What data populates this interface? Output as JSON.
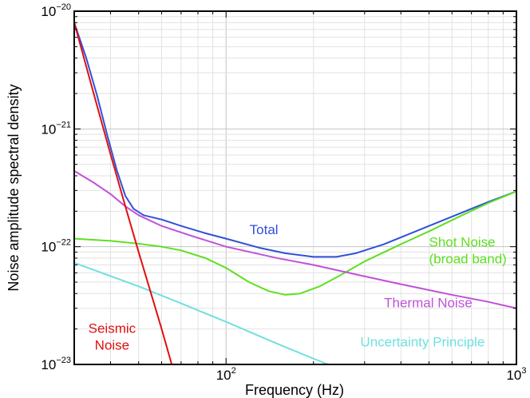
{
  "chart_data": {
    "type": "line",
    "title": "",
    "xlabel": "Frequency (Hz)",
    "ylabel": "Noise amplitude spectral density",
    "xscale": "log",
    "yscale": "log",
    "xlim": [
      30,
      1000
    ],
    "ylim": [
      1e-23,
      1e-20
    ],
    "grid": true,
    "x_ticks": [
      {
        "value": 100,
        "base": "10",
        "exp": "2"
      },
      {
        "value": 1000,
        "base": "10",
        "exp": "3"
      }
    ],
    "y_ticks": [
      {
        "value": 1e-23,
        "base": "10",
        "exp": "−23"
      },
      {
        "value": 1e-22,
        "base": "10",
        "exp": "−22"
      },
      {
        "value": 1e-21,
        "base": "10",
        "exp": "−21"
      },
      {
        "value": 1e-20,
        "base": "10",
        "exp": "−20"
      }
    ],
    "series": [
      {
        "name": "Total",
        "color": "#3050d8",
        "label_lines": [
          "Total"
        ],
        "label_at": [
          135,
          1.28e-22
        ],
        "label_anchor": "middle",
        "points": [
          [
            30,
            8e-21
          ],
          [
            33,
            4e-21
          ],
          [
            36,
            1.9e-21
          ],
          [
            39,
            8.8e-22
          ],
          [
            42,
            4.5e-22
          ],
          [
            45,
            2.7e-22
          ],
          [
            48,
            2.1e-22
          ],
          [
            52,
            1.85e-22
          ],
          [
            60,
            1.7e-22
          ],
          [
            70,
            1.5e-22
          ],
          [
            85,
            1.3e-22
          ],
          [
            100,
            1.17e-22
          ],
          [
            130,
            9.8e-23
          ],
          [
            160,
            8.8e-23
          ],
          [
            200,
            8.2e-23
          ],
          [
            240,
            8.2e-23
          ],
          [
            280,
            8.8e-23
          ],
          [
            350,
            1.05e-22
          ],
          [
            450,
            1.35e-22
          ],
          [
            600,
            1.8e-22
          ],
          [
            800,
            2.4e-22
          ],
          [
            1000,
            2.95e-22
          ]
        ]
      },
      {
        "name": "Shot Noise (broad band)",
        "color": "#5ee020",
        "label_lines": [
          "Shot Noise",
          "(broad band)"
        ],
        "label_at": [
          500,
          1e-22
        ],
        "label_anchor": "start",
        "points": [
          [
            30,
            1.17e-22
          ],
          [
            40,
            1.12e-22
          ],
          [
            50,
            1.06e-22
          ],
          [
            60,
            1e-22
          ],
          [
            70,
            9.3e-23
          ],
          [
            85,
            8e-23
          ],
          [
            100,
            6.6e-23
          ],
          [
            120,
            5e-23
          ],
          [
            140,
            4.2e-23
          ],
          [
            160,
            3.9e-23
          ],
          [
            180,
            4e-23
          ],
          [
            210,
            4.6e-23
          ],
          [
            250,
            5.8e-23
          ],
          [
            300,
            7.5e-23
          ],
          [
            400,
            1.05e-22
          ],
          [
            500,
            1.35e-22
          ],
          [
            650,
            1.85e-22
          ],
          [
            800,
            2.35e-22
          ],
          [
            1000,
            2.95e-22
          ]
        ]
      },
      {
        "name": "Thermal Noise",
        "color": "#c050d8",
        "label_lines": [
          "Thermal Noise"
        ],
        "label_at": [
          350,
          3.05e-23
        ],
        "label_anchor": "start",
        "points": [
          [
            30,
            4.4e-22
          ],
          [
            35,
            3.5e-22
          ],
          [
            40,
            2.8e-22
          ],
          [
            45,
            2.2e-22
          ],
          [
            50,
            1.85e-22
          ],
          [
            60,
            1.5e-22
          ],
          [
            75,
            1.25e-22
          ],
          [
            100,
            1e-22
          ],
          [
            150,
            8e-23
          ],
          [
            200,
            7e-23
          ],
          [
            300,
            5.6e-23
          ],
          [
            400,
            4.8e-23
          ],
          [
            600,
            3.9e-23
          ],
          [
            800,
            3.4e-23
          ],
          [
            1000,
            3e-23
          ]
        ]
      },
      {
        "name": "Uncertainty Principle",
        "color": "#70e0e0",
        "label_lines": [
          "Uncertainty Principle"
        ],
        "label_at": [
          290,
          1.42e-23
        ],
        "label_anchor": "start",
        "points": [
          [
            30,
            7.3e-23
          ],
          [
            50,
            4.6e-23
          ],
          [
            70,
            3.3e-23
          ],
          [
            100,
            2.3e-23
          ],
          [
            150,
            1.5e-23
          ],
          [
            200,
            1.12e-23
          ],
          [
            225,
            1e-23
          ]
        ]
      },
      {
        "name": "Seismic Noise",
        "color": "#e01010",
        "label_lines": [
          "Seismic",
          "Noise"
        ],
        "label_at": [
          40.5,
          1.85e-23
        ],
        "label_anchor": "middle",
        "points": [
          [
            30,
            8e-21
          ],
          [
            35,
            2e-21
          ],
          [
            40,
            6.1e-22
          ],
          [
            45,
            2.2e-22
          ],
          [
            50,
            9e-23
          ],
          [
            55,
            4.1e-23
          ],
          [
            60,
            2e-23
          ],
          [
            65,
            1e-23
          ]
        ]
      }
    ]
  }
}
